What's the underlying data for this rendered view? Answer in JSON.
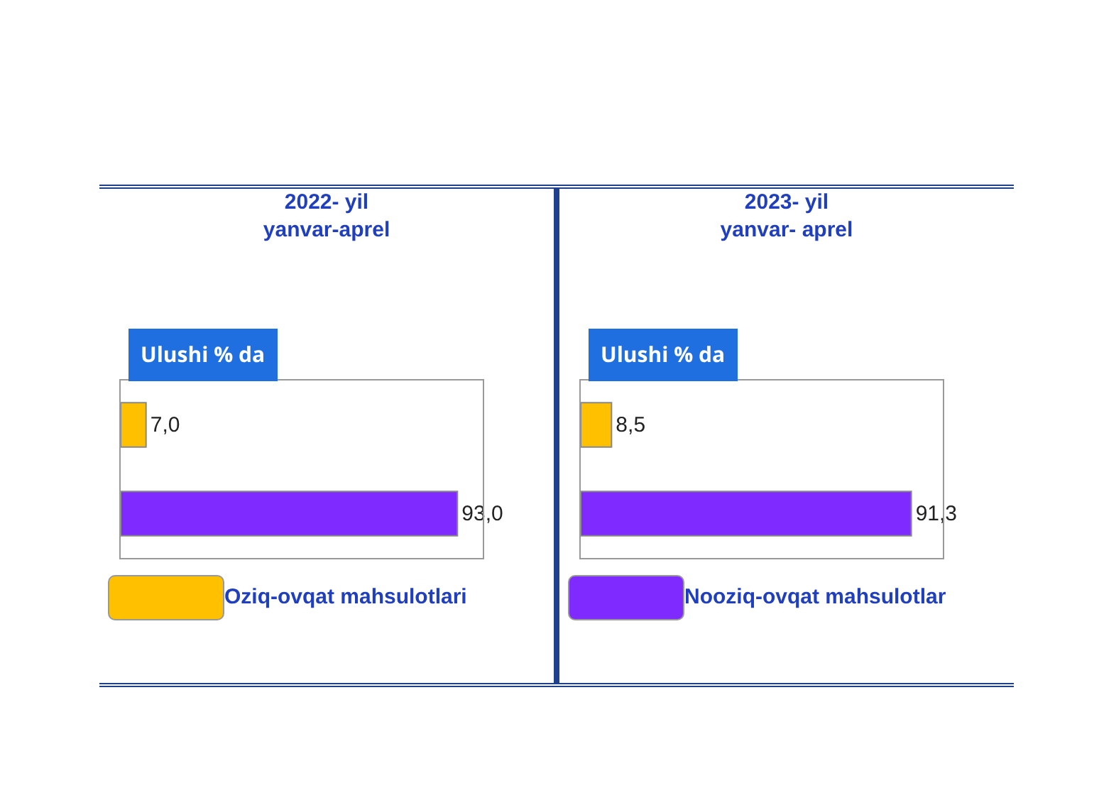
{
  "chart_data": [
    {
      "type": "bar",
      "title": "2022- yil\nyanvar-aprel",
      "subtitle": "Ulushi % da",
      "orientation": "horizontal",
      "categories": [
        null,
        null
      ],
      "xlim": [
        0,
        100
      ],
      "tick_labels": false,
      "values": [
        7.0,
        93.0
      ],
      "colors": [
        "#ffc000",
        "#7f2bff"
      ],
      "value_labels": [
        "7,0",
        "93,0"
      ],
      "annotations": [
        "Oziq-ovqat mahsulotlari"
      ]
    },
    {
      "type": "bar",
      "title": "2023- yil\nyanvar- aprel",
      "subtitle": "Ulushi % da",
      "orientation": "horizontal",
      "categories": [
        null,
        null
      ],
      "xlim": [
        0,
        100
      ],
      "tick_labels": false,
      "values": [
        8.5,
        91.3
      ],
      "colors": [
        "#ffc000",
        "#7f2bff"
      ],
      "value_labels": [
        "8,5",
        "91,3"
      ],
      "annotations": [
        "Nooziq-ovqat mahsulotlar"
      ]
    }
  ]
}
